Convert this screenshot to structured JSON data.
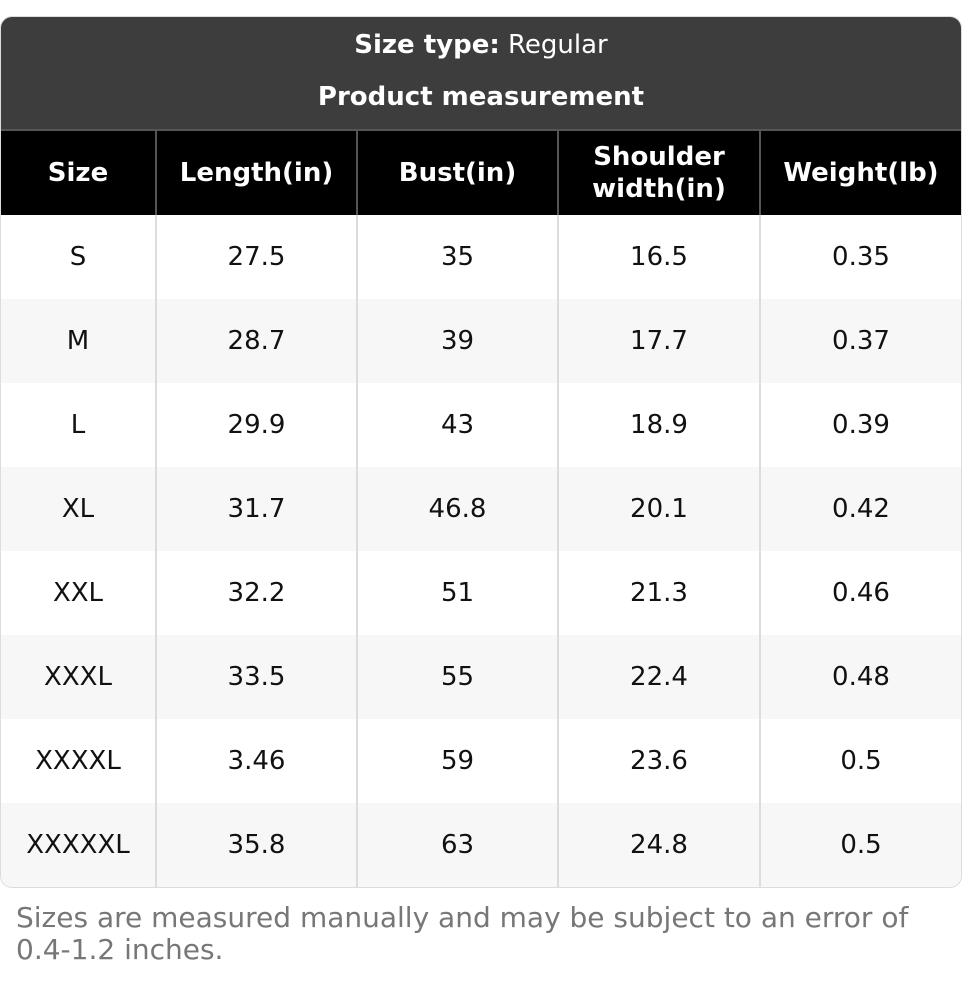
{
  "header": {
    "size_type_label": "Size type:",
    "size_type_value": "Regular",
    "title": "Product measurement"
  },
  "table": {
    "columns": [
      "Size",
      "Length(in)",
      "Bust(in)",
      "Shoulder width(in)",
      "Weight(lb)"
    ],
    "rows": [
      [
        "S",
        "27.5",
        "35",
        "16.5",
        "0.35"
      ],
      [
        "M",
        "28.7",
        "39",
        "17.7",
        "0.37"
      ],
      [
        "L",
        "29.9",
        "43",
        "18.9",
        "0.39"
      ],
      [
        "XL",
        "31.7",
        "46.8",
        "20.1",
        "0.42"
      ],
      [
        "XXL",
        "32.2",
        "51",
        "21.3",
        "0.46"
      ],
      [
        "XXXL",
        "33.5",
        "55",
        "22.4",
        "0.48"
      ],
      [
        "XXXXL",
        "3.46",
        "59",
        "23.6",
        "0.5"
      ],
      [
        "XXXXXL",
        "35.8",
        "63",
        "24.8",
        "0.5"
      ]
    ]
  },
  "footnote": "Sizes are measured manually and may be subject to an error of 0.4-1.2 inches."
}
